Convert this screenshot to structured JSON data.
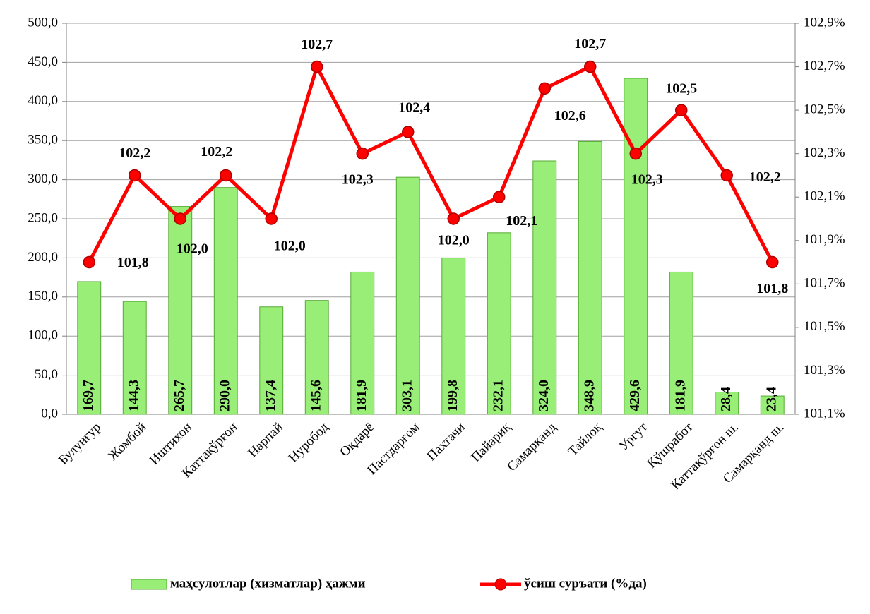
{
  "chart_data": {
    "type": "bar",
    "categories": [
      "Булунғур",
      "Жомбой",
      "Иштихон",
      "Каттақўрғон",
      "Нарпай",
      "Нуробод",
      "Оқдарё",
      "Пастдарғом",
      "Пахтачи",
      "Пайариқ",
      "Самарқанд",
      "Тайлоқ",
      "Ургут",
      "Қўшработ",
      "Каттақўрғон ш.",
      "Самарқанд ш."
    ],
    "series": [
      {
        "name": "маҳсулотлар (хизматлар) ҳажми",
        "type": "bar",
        "color": "#99ee77",
        "values": [
          169.7,
          144.3,
          265.7,
          290.0,
          137.4,
          145.6,
          181.9,
          303.1,
          199.8,
          232.1,
          324.0,
          348.9,
          429.6,
          181.9,
          28.4,
          23.4
        ],
        "value_labels": [
          "169,7",
          "144,3",
          "265,7",
          "290,0",
          "137,4",
          "145,6",
          "181,9",
          "303,1",
          "199,8",
          "232,1",
          "324,0",
          "348,9",
          "429,6",
          "181,9",
          "28,4",
          "23,4"
        ]
      },
      {
        "name": "ўсиш суръати (%да)",
        "type": "line",
        "axis": "y2",
        "color": "#ff0000",
        "values": [
          101.8,
          102.2,
          102.0,
          102.2,
          102.0,
          102.7,
          102.3,
          102.4,
          102.0,
          102.1,
          102.6,
          102.7,
          102.3,
          102.5,
          102.2,
          101.8
        ],
        "value_labels": [
          "101,8",
          "102,2",
          "102,0",
          "102,2",
          "102,0",
          "102,7",
          "102,3",
          "102,4",
          "102,0",
          "102,1",
          "102,6",
          "102,7",
          "102,3",
          "102,5",
          "102,2",
          "101,8"
        ]
      }
    ],
    "ylim": [
      0,
      500
    ],
    "yticks": [
      {
        "value": 0,
        "label": "0,0"
      },
      {
        "value": 50,
        "label": "50,0"
      },
      {
        "value": 100,
        "label": "100,0"
      },
      {
        "value": 150,
        "label": "150,0"
      },
      {
        "value": 200,
        "label": "200,0"
      },
      {
        "value": 250,
        "label": "250,0"
      },
      {
        "value": 300,
        "label": "300,0"
      },
      {
        "value": 350,
        "label": "350,0"
      },
      {
        "value": 400,
        "label": "400,0"
      },
      {
        "value": 450,
        "label": "450,0"
      },
      {
        "value": 500,
        "label": "500,0"
      }
    ],
    "y2lim": [
      101.1,
      102.9
    ],
    "y2ticks": [
      {
        "value": 101.1,
        "label": "101,1%"
      },
      {
        "value": 101.3,
        "label": "101,3%"
      },
      {
        "value": 101.5,
        "label": "101,5%"
      },
      {
        "value": 101.7,
        "label": "101,7%"
      },
      {
        "value": 101.9,
        "label": "101,9%"
      },
      {
        "value": 102.1,
        "label": "102,1%"
      },
      {
        "value": 102.3,
        "label": "102,3%"
      },
      {
        "value": 102.5,
        "label": "102,5%"
      },
      {
        "value": 102.7,
        "label": "102,7%"
      },
      {
        "value": 102.9,
        "label": "102,9%"
      }
    ],
    "grid": true,
    "legend": "bottom"
  }
}
